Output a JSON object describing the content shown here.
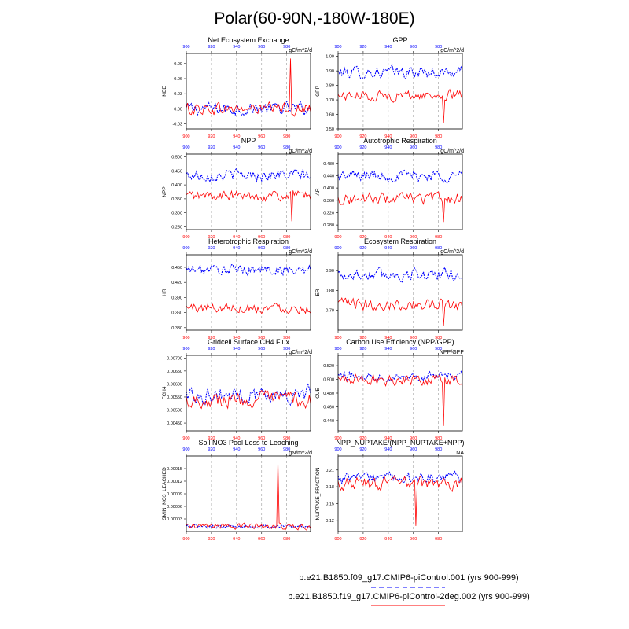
{
  "title": "Polar(60-90N,-180W-180E)",
  "colors": {
    "run1": "#0000ff",
    "run2": "#ff0000"
  },
  "legend": [
    {
      "label": "b.e21.B1850.f09_g17.CMIP6-piControl.001 (yrs 900-999)",
      "color": "#0000ff",
      "style": "dashed"
    },
    {
      "label": "b.e21.B1850.f19_g17.CMIP6-piControl-2deg.002 (yrs 900-999)",
      "color": "#ff0000",
      "style": "solid"
    }
  ],
  "chart_data": [
    {
      "type": "line",
      "title": "Net Ecosystem Exchange",
      "units": "gC/m^2/d",
      "ylabel": "NEE",
      "ylim": [
        -0.04,
        0.11
      ],
      "yticks": [
        "0.09",
        "0.06",
        "0.03",
        "0.00",
        "-0.03"
      ],
      "ytick_values": [
        0.09,
        0.06,
        0.03,
        0.0,
        -0.03
      ],
      "xticks_top": [
        "900",
        "920",
        "940",
        "960",
        "980"
      ],
      "xticks_bottom": [
        "900",
        "920",
        "940",
        "960",
        "980"
      ],
      "xlim": [
        900,
        999
      ],
      "series": [
        {
          "mean": 0.0,
          "amp": 0.012,
          "color": "#0000ff"
        },
        {
          "mean": 0.0,
          "amp": 0.012,
          "color": "#ff0000",
          "spike": {
            "x": 983,
            "y": 0.1
          }
        }
      ]
    },
    {
      "type": "line",
      "title": "GPP",
      "units": "gC/m^2/d",
      "ylabel": "GPP",
      "ylim": [
        0.5,
        1.02
      ],
      "yticks": [
        "1.00",
        "0.90",
        "0.80",
        "0.70",
        "0.60",
        "0.50"
      ],
      "ytick_values": [
        1.0,
        0.9,
        0.8,
        0.7,
        0.6,
        0.5
      ],
      "xticks_top": [
        "900",
        "920",
        "940",
        "960",
        "980"
      ],
      "xticks_bottom": [
        "900",
        "920",
        "940",
        "960",
        "980"
      ],
      "xlim": [
        900,
        999
      ],
      "series": [
        {
          "mean": 0.89,
          "amp": 0.04,
          "color": "#0000ff"
        },
        {
          "mean": 0.73,
          "amp": 0.035,
          "color": "#ff0000",
          "spike": {
            "x": 984,
            "y": 0.54
          }
        }
      ]
    },
    {
      "type": "line",
      "title": "NPP",
      "units": "gC/m^2/d",
      "ylabel": "NPP",
      "ylim": [
        0.24,
        0.51
      ],
      "yticks": [
        "0.500",
        "0.450",
        "0.400",
        "0.350",
        "0.300",
        "0.250"
      ],
      "ytick_values": [
        0.5,
        0.45,
        0.4,
        0.35,
        0.3,
        0.25
      ],
      "xticks_top": [
        "900",
        "920",
        "940",
        "960",
        "980"
      ],
      "xticks_bottom": [
        "900",
        "920",
        "940",
        "960",
        "980"
      ],
      "xlim": [
        900,
        999
      ],
      "series": [
        {
          "mean": 0.435,
          "amp": 0.02,
          "color": "#0000ff"
        },
        {
          "mean": 0.36,
          "amp": 0.018,
          "color": "#ff0000",
          "spike": {
            "x": 984,
            "y": 0.27
          }
        }
      ]
    },
    {
      "type": "line",
      "title": "Autotrophic Respiration",
      "units": "gC/m^2/d",
      "ylabel": "AR",
      "ylim": [
        0.265,
        0.51
      ],
      "yticks": [
        "0.480",
        "0.440",
        "0.400",
        "0.360",
        "0.320",
        "0.280"
      ],
      "ytick_values": [
        0.48,
        0.44,
        0.4,
        0.36,
        0.32,
        0.28
      ],
      "xticks_top": [
        "900",
        "920",
        "940",
        "960",
        "980"
      ],
      "xticks_bottom": [
        "900",
        "920",
        "940",
        "960",
        "980"
      ],
      "xlim": [
        900,
        999
      ],
      "series": [
        {
          "mean": 0.44,
          "amp": 0.018,
          "color": "#0000ff"
        },
        {
          "mean": 0.365,
          "amp": 0.018,
          "color": "#ff0000",
          "spike": {
            "x": 984,
            "y": 0.29
          }
        }
      ]
    },
    {
      "type": "line",
      "title": "Heterotrophic Respiration",
      "units": "gC/m^2/d",
      "ylabel": "HR",
      "ylim": [
        0.325,
        0.475
      ],
      "yticks": [
        "0.450",
        "0.420",
        "0.390",
        "0.360",
        "0.330"
      ],
      "ytick_values": [
        0.45,
        0.42,
        0.39,
        0.36,
        0.33
      ],
      "xticks_top": [
        "900",
        "920",
        "940",
        "960",
        "980"
      ],
      "xticks_bottom": [
        "900",
        "920",
        "940",
        "960",
        "980"
      ],
      "xlim": [
        900,
        999
      ],
      "series": [
        {
          "mean": 0.445,
          "amp": 0.01,
          "color": "#0000ff"
        },
        {
          "mean": 0.37,
          "amp": 0.01,
          "color": "#ff0000"
        }
      ]
    },
    {
      "type": "line",
      "title": "Ecosystem Respiration",
      "units": "gC/m^2/d",
      "ylabel": "ER",
      "ylim": [
        0.6,
        0.98
      ],
      "yticks": [
        "0.90",
        "0.80",
        "0.70"
      ],
      "ytick_values": [
        0.9,
        0.8,
        0.7
      ],
      "xticks_top": [
        "900",
        "920",
        "940",
        "960",
        "980"
      ],
      "xticks_bottom": [
        "900",
        "920",
        "940",
        "960",
        "980"
      ],
      "xlim": [
        900,
        999
      ],
      "series": [
        {
          "mean": 0.88,
          "amp": 0.03,
          "color": "#0000ff"
        },
        {
          "mean": 0.73,
          "amp": 0.03,
          "color": "#ff0000",
          "spike": {
            "x": 984,
            "y": 0.62
          }
        }
      ]
    },
    {
      "type": "line",
      "title": "Gridcell Surface CH4 Flux",
      "units": "gC/m^2/d",
      "ylabel": "FCH4",
      "ylim": [
        0.0042,
        0.0071
      ],
      "yticks": [
        "0.00700",
        "0.00650",
        "0.00600",
        "0.00550",
        "0.00500",
        "0.00450"
      ],
      "ytick_values": [
        0.007,
        0.0065,
        0.006,
        0.0055,
        0.005,
        0.0045
      ],
      "xticks_top": [
        "900",
        "920",
        "940",
        "960",
        "980"
      ],
      "xticks_bottom": [
        "900",
        "920",
        "940",
        "960",
        "980"
      ],
      "xlim": [
        900,
        999
      ],
      "series": [
        {
          "mean": 0.0056,
          "amp": 0.0003,
          "color": "#0000ff"
        },
        {
          "mean": 0.0054,
          "amp": 0.0003,
          "color": "#ff0000"
        }
      ]
    },
    {
      "type": "line",
      "title": "Carbon Use Efficiency (NPP/GPP)",
      "units": "NPP/GPP",
      "ylabel": "CUE",
      "ylim": [
        0.425,
        0.535
      ],
      "yticks": [
        "0.520",
        "0.500",
        "0.480",
        "0.460",
        "0.440"
      ],
      "ytick_values": [
        0.52,
        0.5,
        0.48,
        0.46,
        0.44
      ],
      "xticks_top": [
        "900",
        "920",
        "940",
        "960",
        "980"
      ],
      "xticks_bottom": [
        "900",
        "920",
        "940",
        "960",
        "980"
      ],
      "xlim": [
        900,
        999
      ],
      "series": [
        {
          "mean": 0.505,
          "amp": 0.006,
          "color": "#0000ff"
        },
        {
          "mean": 0.5,
          "amp": 0.008,
          "color": "#ff0000",
          "spike": {
            "x": 984,
            "y": 0.432
          }
        }
      ]
    },
    {
      "type": "line",
      "title": "Soil NO3 Pool Loss to Leaching",
      "units": "gN/m^2/d",
      "ylabel": "SMIN_NO3_LEACHED",
      "ylim": [
        0.0,
        0.00018
      ],
      "yticks": [
        "0.00015",
        "0.00012",
        "0.00009",
        "0.00006",
        "0.00003"
      ],
      "ytick_values": [
        0.00015,
        0.00012,
        9e-05,
        6e-05,
        3e-05
      ],
      "xticks_top": [
        "900",
        "920",
        "940",
        "960",
        "980"
      ],
      "xticks_bottom": [
        "900",
        "920",
        "940",
        "960",
        "980"
      ],
      "xlim": [
        900,
        999
      ],
      "series": [
        {
          "mean": 1.2e-05,
          "amp": 4e-06,
          "color": "#0000ff"
        },
        {
          "mean": 1.2e-05,
          "amp": 7e-06,
          "color": "#ff0000",
          "spike": {
            "x": 973,
            "y": 0.00017
          }
        }
      ]
    },
    {
      "type": "line",
      "title": "NPP_NUPTAKE/(NPP_NUPTAKE+NPP)",
      "units": "NA",
      "ylabel": "NUPTAKE_FRACTION",
      "ylim": [
        0.1,
        0.235
      ],
      "yticks": [
        "0.21",
        "0.18",
        "0.15",
        "0.12"
      ],
      "ytick_values": [
        0.21,
        0.18,
        0.15,
        0.12
      ],
      "xticks_top": [
        "900",
        "920",
        "940",
        "960",
        "980"
      ],
      "xticks_bottom": [
        "900",
        "920",
        "940",
        "960",
        "980"
      ],
      "xlim": [
        900,
        999
      ],
      "series": [
        {
          "mean": 0.195,
          "amp": 0.01,
          "color": "#0000ff"
        },
        {
          "mean": 0.185,
          "amp": 0.012,
          "color": "#ff0000",
          "spike": {
            "x": 962,
            "y": 0.11
          }
        }
      ]
    }
  ]
}
